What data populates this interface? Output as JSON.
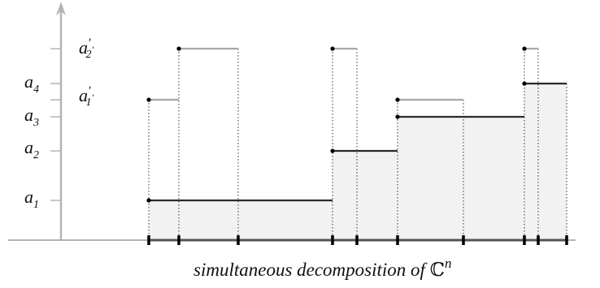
{
  "diagram": {
    "caption": {
      "prefix": "simultaneous decomposition of ",
      "symbol": "ℂ",
      "exponent": "n"
    },
    "y_labels": [
      {
        "id": "a1",
        "base": "a",
        "sub": "1",
        "prime": ""
      },
      {
        "id": "a2",
        "base": "a",
        "sub": "2",
        "prime": ""
      },
      {
        "id": "a3",
        "base": "a",
        "sub": "3",
        "prime": ""
      },
      {
        "id": "a4",
        "base": "a",
        "sub": "4",
        "prime": ""
      },
      {
        "id": "a1p",
        "base": "a",
        "sub": "1",
        "prime": "′",
        "subprime": "′"
      },
      {
        "id": "a2p",
        "base": "a",
        "sub": "2",
        "prime": "′",
        "subprime": "′"
      }
    ],
    "colors": {
      "axis": "#b5b5b5",
      "dark_step": "#2a2a2a",
      "light_step": "#a8a8a8",
      "fill": "#f2f2f2",
      "baseline": "#9a9a9a",
      "tick": "#000000"
    }
  }
}
